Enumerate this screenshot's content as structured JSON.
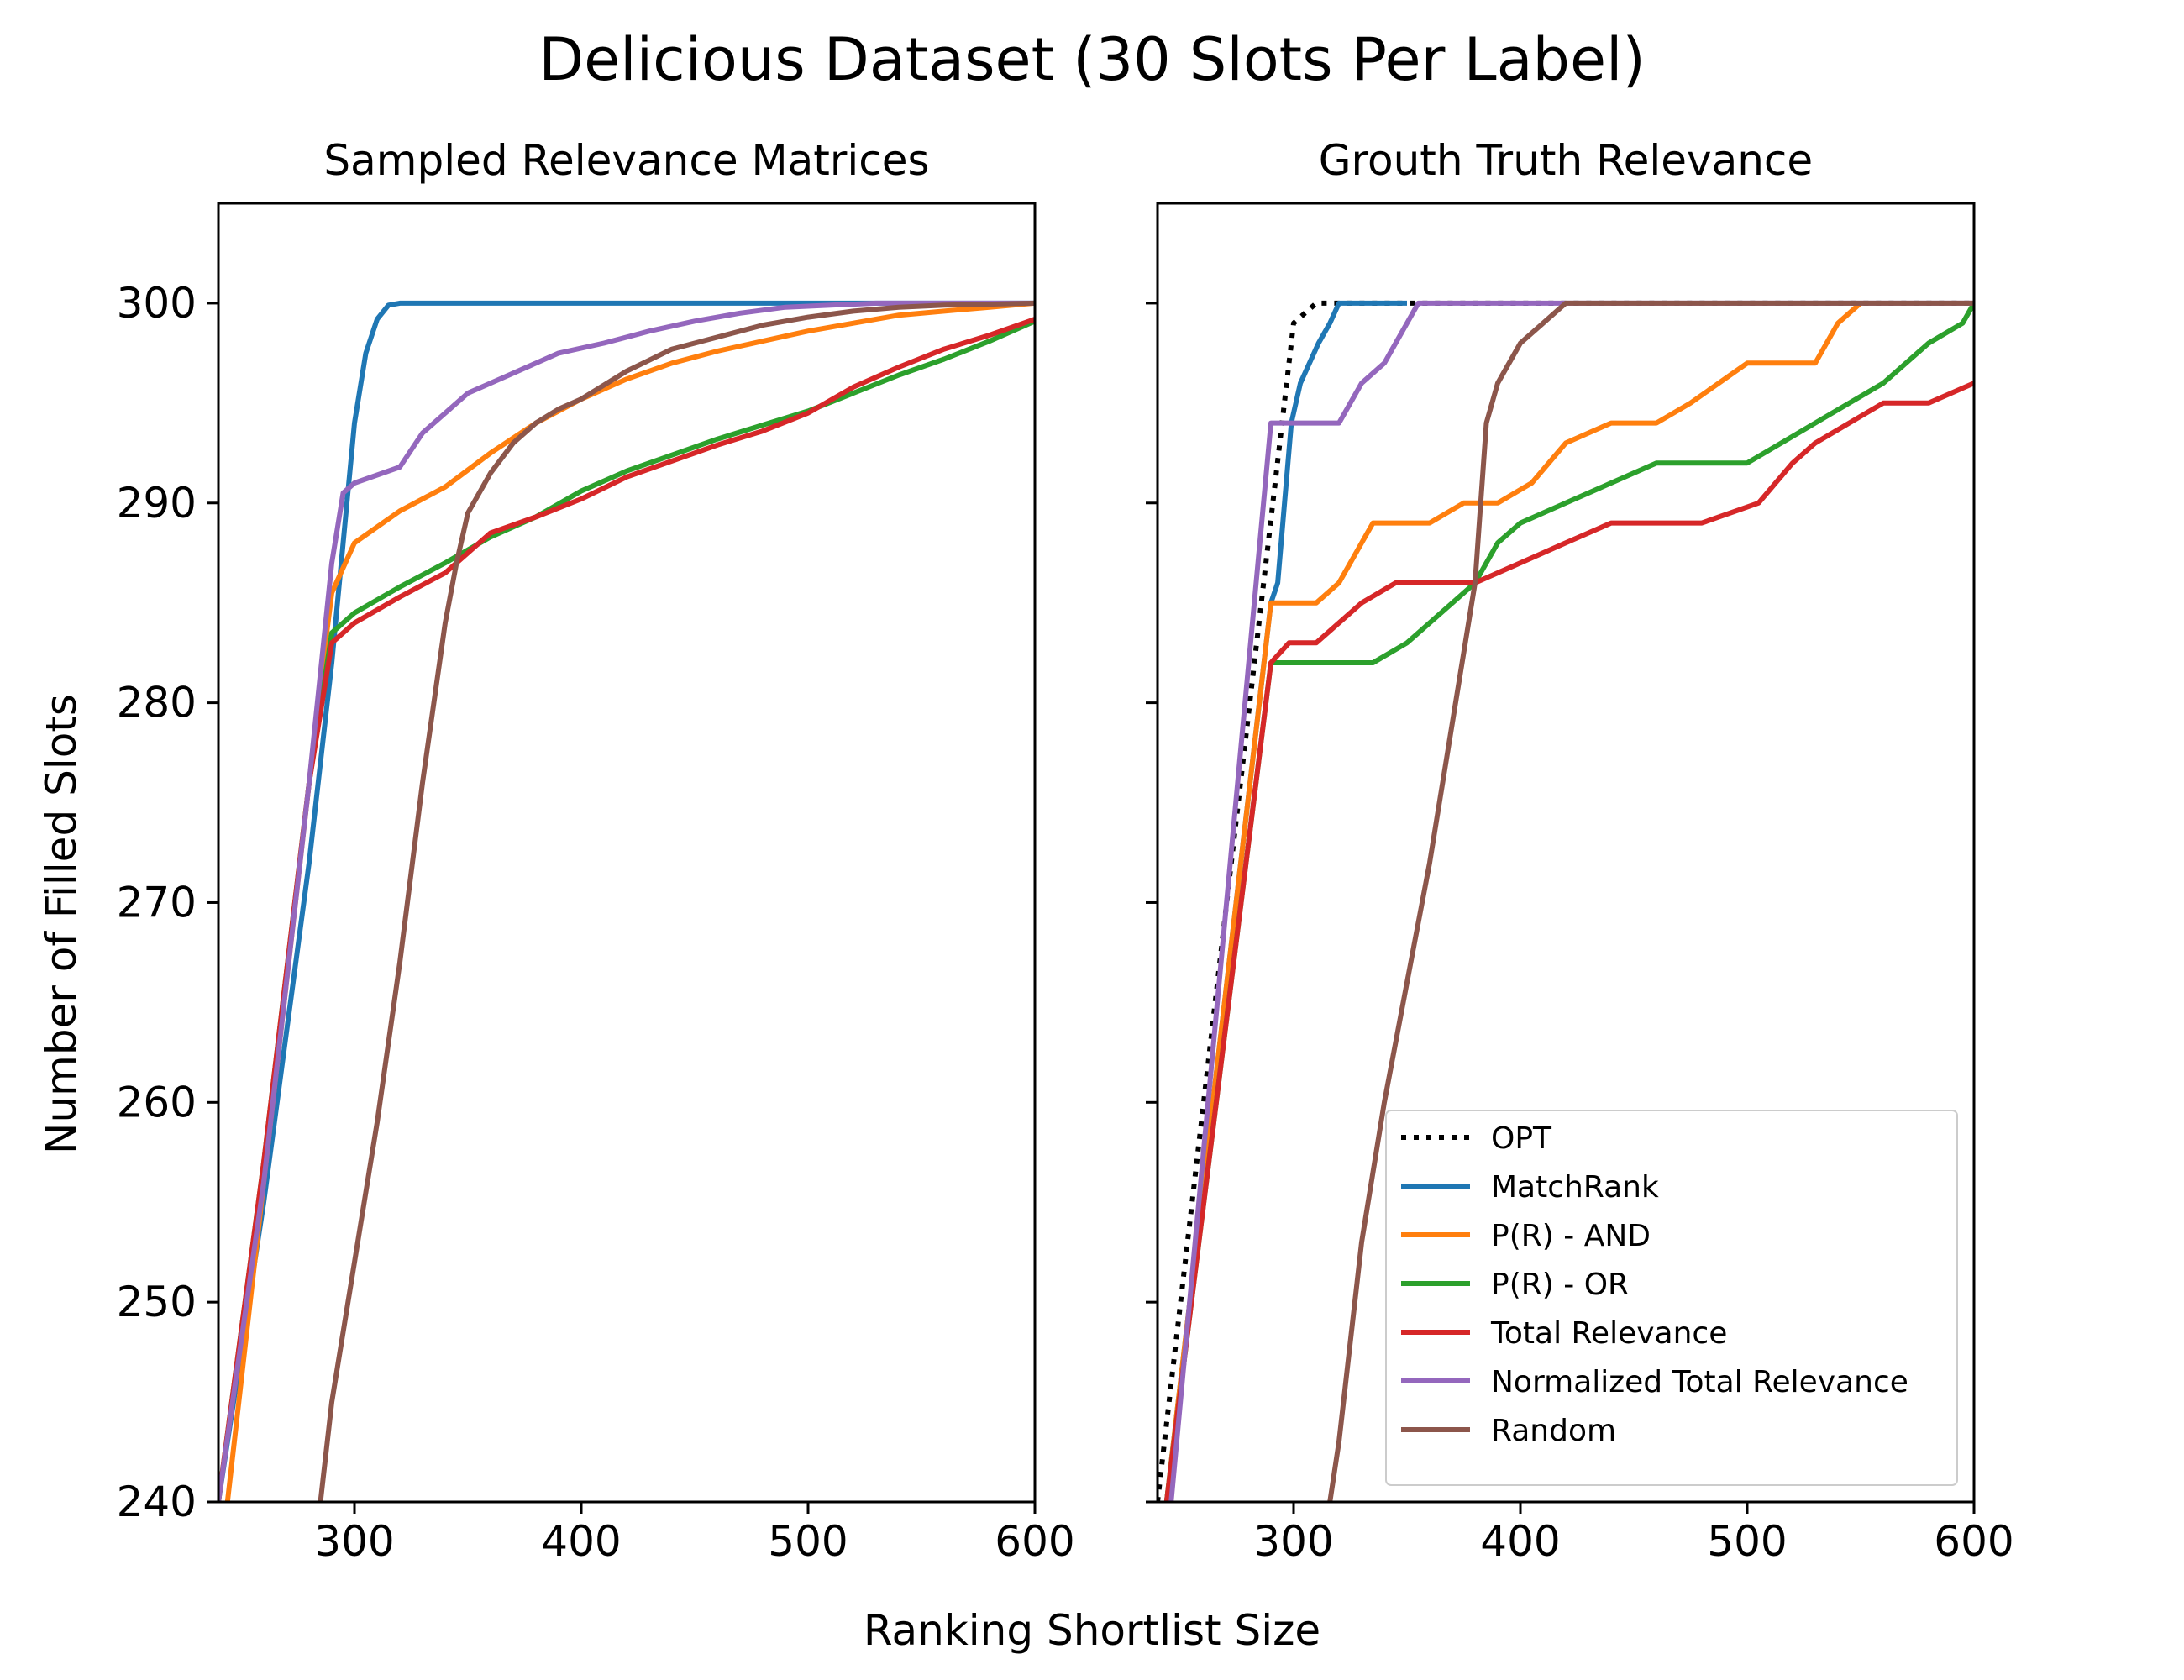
{
  "figure": {
    "suptitle": "Delicious Dataset (30 Slots Per Label)",
    "xlabel": "Ranking Shortlist Size",
    "ylabel": "Number of Filled Slots"
  },
  "colors": {
    "OPT": "#000000",
    "MatchRank": "#1f77b4",
    "P(R) - AND": "#ff7f0e",
    "P(R) - OR": "#2ca02c",
    "Total Relevance": "#d62728",
    "Normalized Total Relevance": "#9467bd",
    "Random": "#8c564b"
  },
  "chart_data": [
    {
      "type": "line",
      "title": "Sampled Relevance Matrices",
      "xlim": [
        240,
        600
      ],
      "ylim": [
        240,
        305
      ],
      "xticks": [
        300,
        400,
        500,
        600
      ],
      "yticks": [
        240,
        250,
        260,
        270,
        280,
        290,
        300
      ],
      "legend": "none",
      "series": [
        {
          "name": "MatchRank",
          "x": [
            240,
            260,
            280,
            290,
            295,
            300,
            305,
            310,
            315,
            320,
            600
          ],
          "y": [
            240,
            255,
            272,
            282,
            288,
            294,
            297.5,
            299.2,
            299.9,
            300,
            300
          ]
        },
        {
          "name": "P(R) - AND",
          "x": [
            244,
            260,
            280,
            285,
            290,
            300,
            320,
            340,
            360,
            380,
            400,
            420,
            440,
            460,
            480,
            500,
            520,
            540,
            560,
            580,
            600
          ],
          "y": [
            240,
            256,
            276,
            281,
            285.5,
            288,
            289.6,
            290.8,
            292.5,
            294,
            295.2,
            296.2,
            297,
            297.6,
            298.1,
            298.6,
            299,
            299.4,
            299.6,
            299.8,
            300
          ]
        },
        {
          "name": "P(R) - OR",
          "x": [
            240,
            260,
            280,
            290,
            300,
            320,
            340,
            360,
            380,
            400,
            420,
            440,
            460,
            480,
            500,
            520,
            540,
            560,
            580,
            600
          ],
          "y": [
            240,
            257,
            276,
            283.5,
            284.5,
            285.8,
            287,
            288.3,
            289.3,
            290.6,
            291.6,
            292.4,
            293.2,
            293.9,
            294.6,
            295.5,
            296.4,
            297.2,
            298.1,
            299.1
          ]
        },
        {
          "name": "Total Relevance",
          "x": [
            240,
            260,
            280,
            290,
            300,
            320,
            340,
            360,
            380,
            400,
            420,
            440,
            460,
            480,
            500,
            520,
            540,
            560,
            580,
            600
          ],
          "y": [
            240,
            257,
            276,
            283,
            284,
            285.3,
            286.5,
            288.5,
            289.3,
            290.2,
            291.3,
            292.1,
            292.9,
            293.6,
            294.5,
            295.8,
            296.8,
            297.7,
            298.4,
            299.2
          ]
        },
        {
          "name": "Normalized Total Relevance",
          "x": [
            240,
            260,
            280,
            290,
            295,
            300,
            320,
            330,
            340,
            350,
            370,
            390,
            410,
            430,
            450,
            470,
            490,
            510,
            530,
            560,
            600
          ],
          "y": [
            240,
            256,
            276,
            287,
            290.5,
            291,
            291.8,
            293.5,
            294.5,
            295.5,
            296.5,
            297.5,
            298,
            298.6,
            299.1,
            299.5,
            299.8,
            299.9,
            300,
            300,
            300
          ]
        },
        {
          "name": "Random",
          "x": [
            285,
            290,
            300,
            310,
            320,
            330,
            340,
            345,
            350,
            360,
            370,
            380,
            390,
            400,
            420,
            440,
            460,
            480,
            500,
            520,
            540,
            560,
            600
          ],
          "y": [
            240,
            245,
            252,
            259,
            267,
            276,
            284,
            287,
            289.5,
            291.5,
            293,
            294,
            294.7,
            295.2,
            296.6,
            297.7,
            298.3,
            298.9,
            299.3,
            299.6,
            299.8,
            299.9,
            300
          ]
        }
      ]
    },
    {
      "type": "line",
      "title": "Grouth Truth Relevance",
      "xlim": [
        240,
        600
      ],
      "ylim": [
        240,
        305
      ],
      "xticks": [
        300,
        400,
        500,
        600
      ],
      "yticks": [
        240,
        250,
        260,
        270,
        280,
        290,
        300
      ],
      "legend": "lower right",
      "series": [
        {
          "name": "OPT",
          "x": [
            240,
            300,
            310,
            600
          ],
          "y": [
            240,
            299,
            300,
            300
          ],
          "dash": "dotted"
        },
        {
          "name": "MatchRank",
          "x": [
            244,
            290,
            293,
            296,
            299,
            303,
            307,
            311,
            316,
            320,
            350
          ],
          "y": [
            240,
            285,
            286,
            290,
            294,
            296,
            297,
            298,
            299,
            300,
            300
          ]
        },
        {
          "name": "P(R) - AND",
          "x": [
            244,
            290,
            300,
            310,
            320,
            325,
            330,
            335,
            350,
            360,
            375,
            390,
            405,
            420,
            440,
            460,
            475,
            500,
            530,
            540,
            550
          ],
          "y": [
            240,
            285,
            285,
            285,
            286,
            287,
            288,
            289,
            289,
            289,
            290,
            290,
            291,
            293,
            294,
            294,
            295,
            297,
            297,
            299,
            300
          ]
        },
        {
          "name": "P(R) - OR",
          "x": [
            244,
            290,
            300,
            320,
            335,
            350,
            360,
            370,
            380,
            390,
            400,
            420,
            440,
            460,
            480,
            500,
            515,
            530,
            545,
            560,
            580,
            595,
            600
          ],
          "y": [
            240,
            282,
            282,
            282,
            282,
            283,
            284,
            285,
            286,
            288,
            289,
            290,
            291,
            292,
            292,
            292,
            293,
            294,
            295,
            296,
            298,
            299,
            300
          ]
        },
        {
          "name": "Total Relevance",
          "x": [
            244,
            290,
            298,
            310,
            320,
            330,
            345,
            360,
            380,
            400,
            420,
            440,
            460,
            480,
            505,
            520,
            530,
            545,
            560,
            580,
            600
          ],
          "y": [
            240,
            282,
            283,
            283,
            284,
            285,
            286,
            286,
            286,
            287,
            288,
            289,
            289,
            289,
            290,
            292,
            293,
            294,
            295,
            295,
            296
          ]
        },
        {
          "name": "Normalized Total Relevance",
          "x": [
            246,
            290,
            295,
            320,
            330,
            340,
            345,
            350,
            355,
            600
          ],
          "y": [
            240,
            294,
            294,
            294,
            296,
            297,
            298,
            299,
            300,
            300
          ]
        },
        {
          "name": "Random",
          "x": [
            316,
            320,
            330,
            340,
            350,
            360,
            370,
            380,
            385,
            390,
            400,
            410,
            420,
            425,
            600
          ],
          "y": [
            240,
            243,
            253,
            260,
            266,
            272,
            279,
            286,
            294,
            296,
            298,
            299,
            300,
            300,
            300
          ]
        }
      ]
    }
  ]
}
